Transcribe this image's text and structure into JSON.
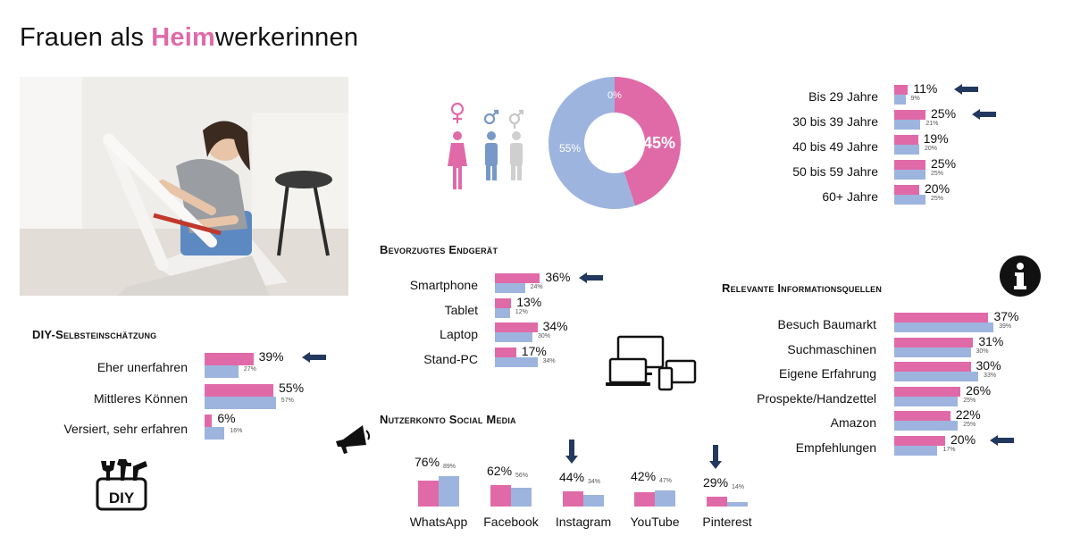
{
  "title": {
    "pre": "Frauen als ",
    "highlight": "Heim",
    "post": "werkerinnen"
  },
  "colors": {
    "female": "#e06aa8",
    "male": "#9db4de",
    "arrow": "#22385e",
    "grey": "#cfcfcf"
  },
  "icons": [
    "female-symbol-icon",
    "male-symbol-icon",
    "diverse-symbol-icon",
    "female-person-icon",
    "male-person-icon",
    "diverse-person-icon",
    "info-icon",
    "devices-icon",
    "megaphone-icon",
    "diy-tools-icon",
    "arrow-icon"
  ],
  "chart_data": [
    {
      "type": "pie",
      "id": "gender",
      "categories": [
        "Frauen",
        "Männer",
        "Divers"
      ],
      "values": [
        45,
        55,
        0
      ],
      "labels": [
        "45%",
        "55%",
        "0%"
      ]
    },
    {
      "type": "bar",
      "id": "age",
      "orientation": "horizontal",
      "categories": [
        "Bis 29 Jahre",
        "30 bis 39 Jahre",
        "40 bis 49 Jahre",
        "50 bis 59 Jahre",
        "60+ Jahre"
      ],
      "series": [
        {
          "values": [
            11,
            25,
            19,
            25,
            20
          ],
          "labels": [
            "11%",
            "25%",
            "19%",
            "25%",
            "20%"
          ]
        },
        {
          "values": [
            9,
            21,
            20,
            25,
            25
          ],
          "labels": [
            "9%",
            "21%",
            "20%",
            "25%",
            "25%"
          ]
        }
      ],
      "highlighted": [
        "Bis 29 Jahre",
        "30 bis 39 Jahre"
      ]
    },
    {
      "type": "bar",
      "id": "device",
      "orientation": "horizontal",
      "title": "Bevorzugtes Endgerät",
      "categories": [
        "Smartphone",
        "Tablet",
        "Laptop",
        "Stand-PC"
      ],
      "series": [
        {
          "values": [
            36,
            13,
            34,
            17
          ],
          "labels": [
            "36%",
            "13%",
            "34%",
            "17%"
          ]
        },
        {
          "values": [
            24,
            12,
            30,
            34
          ],
          "labels": [
            "24%",
            "12%",
            "30%",
            "34%"
          ]
        }
      ],
      "highlighted": [
        "Smartphone"
      ]
    },
    {
      "type": "bar",
      "id": "diy",
      "orientation": "horizontal",
      "title": "DIY-Selbsteinschätzung",
      "categories": [
        "Eher unerfahren",
        "Mittleres Können",
        "Versiert, sehr erfahren"
      ],
      "series": [
        {
          "values": [
            39,
            55,
            6
          ],
          "labels": [
            "39%",
            "55%",
            "6%"
          ]
        },
        {
          "values": [
            27,
            57,
            16
          ],
          "labels": [
            "27%",
            "57%",
            "16%"
          ]
        }
      ],
      "highlighted": [
        "Eher unerfahren"
      ]
    },
    {
      "type": "bar",
      "id": "social",
      "orientation": "vertical",
      "title": "Nutzerkonto Social Media",
      "categories": [
        "WhatsApp",
        "Facebook",
        "Instagram",
        "YouTube",
        "Pinterest"
      ],
      "series": [
        {
          "values": [
            76,
            62,
            44,
            42,
            29
          ],
          "labels": [
            "76%",
            "62%",
            "44%",
            "42%",
            "29%"
          ]
        },
        {
          "values": [
            89,
            56,
            34,
            47,
            14
          ],
          "labels": [
            "89%",
            "56%",
            "34%",
            "47%",
            "14%"
          ]
        }
      ],
      "highlighted": [
        "Instagram",
        "Pinterest"
      ]
    },
    {
      "type": "bar",
      "id": "info",
      "orientation": "horizontal",
      "title": "Relevante Informationsquellen",
      "categories": [
        "Besuch Baumarkt",
        "Suchmaschinen",
        "Eigene Erfahrung",
        "Prospekte/Handzettel",
        "Amazon",
        "Empfehlungen"
      ],
      "series": [
        {
          "values": [
            37,
            31,
            30,
            26,
            22,
            20
          ],
          "labels": [
            "37%",
            "31%",
            "30%",
            "26%",
            "22%",
            "20%"
          ]
        },
        {
          "values": [
            39,
            30,
            33,
            25,
            25,
            17
          ],
          "labels": [
            "39%",
            "30%",
            "33%",
            "25%",
            "25%",
            "17%"
          ]
        }
      ],
      "highlighted": [
        "Empfehlungen"
      ]
    }
  ]
}
